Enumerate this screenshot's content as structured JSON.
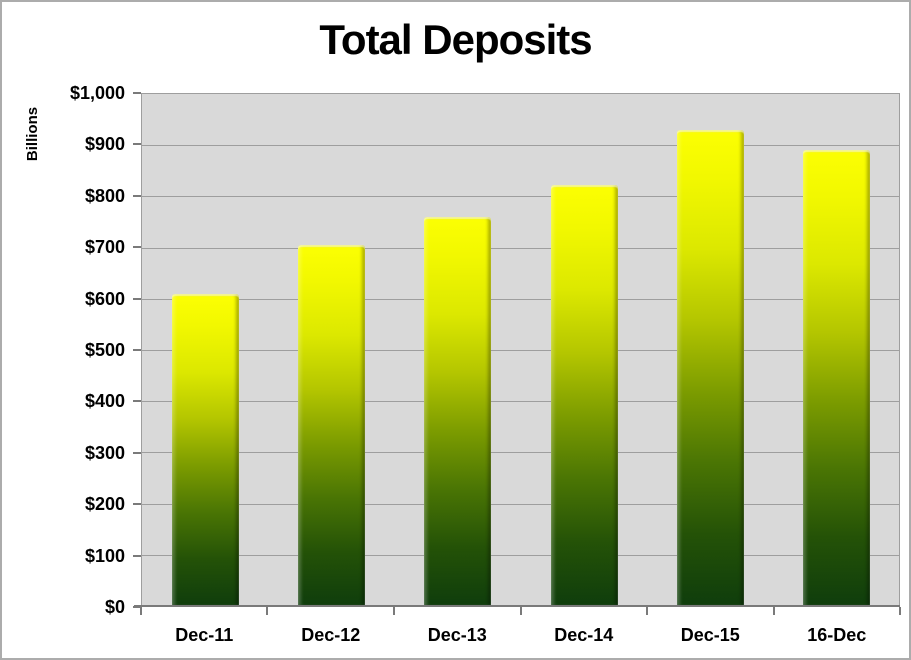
{
  "chart_data": {
    "type": "bar",
    "title": "Total Deposits",
    "ylabel": "Billions",
    "xlabel": "",
    "categories": [
      "Dec-11",
      "Dec-12",
      "Dec-13",
      "Dec-14",
      "Dec-15",
      "16-Dec"
    ],
    "values": [
      610,
      705,
      760,
      823,
      930,
      890
    ],
    "ylim": [
      0,
      1000
    ],
    "yticks": [
      {
        "value": 0,
        "label": "$0"
      },
      {
        "value": 100,
        "label": "$100"
      },
      {
        "value": 200,
        "label": "$200"
      },
      {
        "value": 300,
        "label": "$300"
      },
      {
        "value": 400,
        "label": "$400"
      },
      {
        "value": 500,
        "label": "$500"
      },
      {
        "value": 600,
        "label": "$600"
      },
      {
        "value": 700,
        "label": "$700"
      },
      {
        "value": 800,
        "label": "$800"
      },
      {
        "value": 900,
        "label": "$900"
      },
      {
        "value": 1000,
        "label": "$1,000"
      }
    ],
    "grid": true,
    "legend": false,
    "colors": {
      "bar_gradient_top": "#FCFF02",
      "bar_gradient_middle": "#7C9C00",
      "bar_gradient_bottom": "#0F3D0C",
      "plot_background": "#D9D9D9",
      "gridline": "#9E9E9E",
      "axis_line": "#7A7A7A",
      "text": "#000000",
      "canvas_border": "#ACACAC"
    }
  }
}
